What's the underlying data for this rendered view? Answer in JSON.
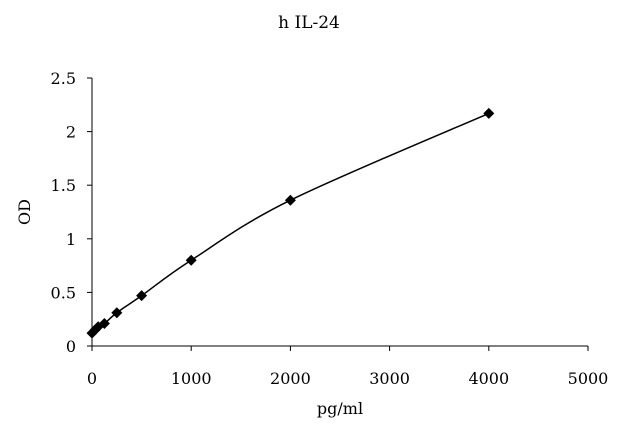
{
  "chart_data": {
    "type": "scatter",
    "title": "h IL-24",
    "xlabel": "pg/ml",
    "ylabel": "OD",
    "xlim": [
      0,
      5000
    ],
    "ylim": [
      0,
      2.5
    ],
    "x_ticks": [
      0,
      1000,
      2000,
      3000,
      4000,
      5000
    ],
    "y_ticks": [
      0,
      0.5,
      1,
      1.5,
      2,
      2.5
    ],
    "x_tick_labels": [
      "0",
      "1000",
      "2000",
      "3000",
      "4000",
      "5000"
    ],
    "y_tick_labels": [
      "0",
      "0.5",
      "1",
      "1.5",
      "2",
      "2.5"
    ],
    "grid": false,
    "legend": "none",
    "marker": "diamond",
    "trendline": "smooth",
    "series": [
      {
        "x": [
          0,
          31.25,
          62.5,
          125,
          250,
          500,
          1000,
          2000,
          4000
        ],
        "y": [
          0.12,
          0.15,
          0.18,
          0.21,
          0.31,
          0.47,
          0.8,
          1.36,
          2.17
        ]
      }
    ],
    "colors": {
      "marker": "#000000",
      "line": "#000000",
      "axis": "#000000"
    }
  }
}
